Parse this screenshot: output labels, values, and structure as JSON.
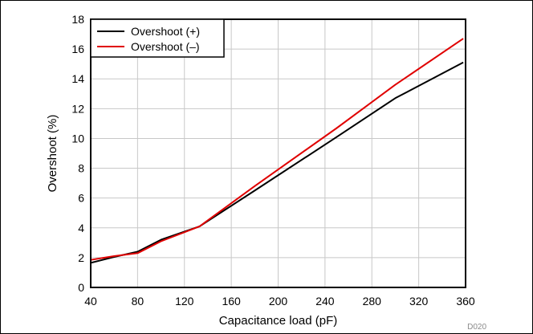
{
  "chart_data": {
    "type": "line",
    "xlabel": "Capacitance load (pF)",
    "ylabel": "Overshoot (%)",
    "xlim": [
      40,
      360
    ],
    "ylim": [
      0,
      18
    ],
    "xticks": [
      40,
      80,
      120,
      160,
      200,
      240,
      280,
      320,
      360
    ],
    "yticks": [
      0,
      2,
      4,
      6,
      8,
      10,
      12,
      14,
      16,
      18
    ],
    "grid": true,
    "legend_position": "top-left",
    "series": [
      {
        "name": "Overshoot (+)",
        "color": "#000000",
        "x": [
          40,
          60,
          80,
          100,
          133,
          180,
          250,
          300,
          358
        ],
        "y": [
          1.65,
          2.05,
          2.4,
          3.2,
          4.1,
          6.5,
          10.1,
          12.7,
          15.1
        ]
      },
      {
        "name": "Overshoot (–)",
        "color": "#e00000",
        "x": [
          40,
          60,
          80,
          100,
          133,
          180,
          250,
          300,
          358
        ],
        "y": [
          1.85,
          2.1,
          2.3,
          3.1,
          4.1,
          6.8,
          10.7,
          13.6,
          16.7
        ]
      }
    ],
    "figure_code": "D020"
  }
}
